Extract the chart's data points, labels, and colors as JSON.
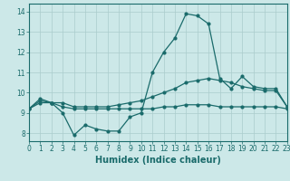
{
  "title": "",
  "xlabel": "Humidex (Indice chaleur)",
  "ylabel": "",
  "x": [
    0,
    1,
    2,
    3,
    4,
    5,
    6,
    7,
    8,
    9,
    10,
    11,
    12,
    13,
    14,
    15,
    16,
    17,
    18,
    19,
    20,
    21,
    22,
    23
  ],
  "line1": [
    9.2,
    9.7,
    9.5,
    9.0,
    7.9,
    8.4,
    8.2,
    8.1,
    8.1,
    8.8,
    9.0,
    11.0,
    12.0,
    12.7,
    13.9,
    13.8,
    13.4,
    10.7,
    10.2,
    10.8,
    10.3,
    10.2,
    10.2,
    9.3
  ],
  "line2": [
    9.2,
    9.6,
    9.5,
    9.5,
    9.3,
    9.3,
    9.3,
    9.3,
    9.4,
    9.5,
    9.6,
    9.8,
    10.0,
    10.2,
    10.5,
    10.6,
    10.7,
    10.6,
    10.5,
    10.3,
    10.2,
    10.1,
    10.1,
    9.3
  ],
  "line3": [
    9.2,
    9.5,
    9.5,
    9.3,
    9.2,
    9.2,
    9.2,
    9.2,
    9.2,
    9.2,
    9.2,
    9.2,
    9.3,
    9.3,
    9.4,
    9.4,
    9.4,
    9.3,
    9.3,
    9.3,
    9.3,
    9.3,
    9.3,
    9.2
  ],
  "line_color": "#1a6b6b",
  "bg_color": "#cce8e8",
  "grid_color": "#aacccc",
  "xlim": [
    0,
    23
  ],
  "ylim": [
    7.6,
    14.4
  ],
  "yticks": [
    8,
    9,
    10,
    11,
    12,
    13,
    14
  ],
  "xticks": [
    0,
    1,
    2,
    3,
    4,
    5,
    6,
    7,
    8,
    9,
    10,
    11,
    12,
    13,
    14,
    15,
    16,
    17,
    18,
    19,
    20,
    21,
    22,
    23
  ],
  "tick_fontsize": 5.5,
  "xlabel_fontsize": 7.0
}
